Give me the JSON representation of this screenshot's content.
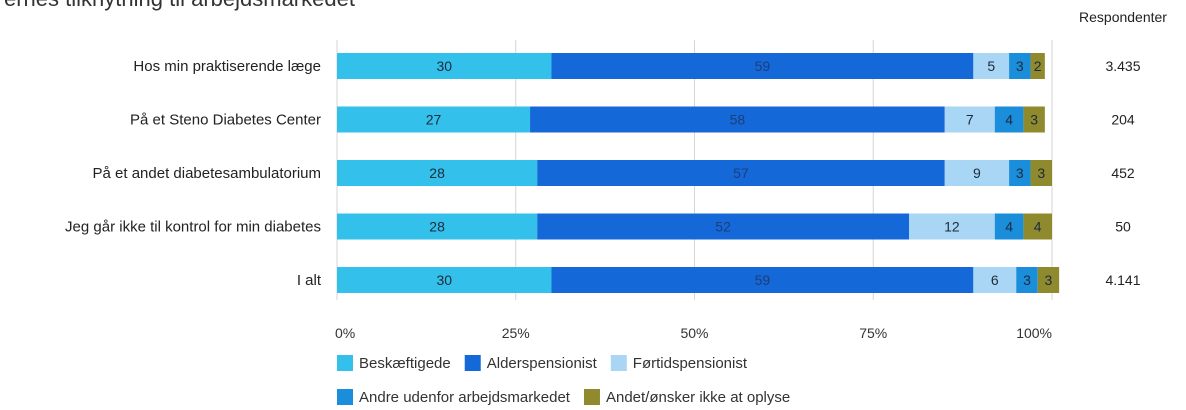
{
  "colors": {
    "Beskæftigede": "#33c0ea",
    "Alderspensionist": "#1468d8",
    "Førtidspensionist": "#a9d6f4",
    "Andre udenfor arbejdsmarkedet": "#1a8ddb",
    "Andet/ønsker ikke at oplyse": "#8f8a2e"
  },
  "chart_data": {
    "type": "bar",
    "orientation": "horizontal",
    "stacked": true,
    "title": "ernes tilknytning til arbejdsmarkedet",
    "respondents_header": "Respondenter",
    "categories": [
      "Hos min praktiserende læge",
      "På et Steno Diabetes Center",
      "På et andet diabetesambulatorium",
      "Jeg går ikke til kontrol for min diabetes",
      "I alt"
    ],
    "respondents": [
      "3.435",
      "204",
      "452",
      "50",
      "4.141"
    ],
    "series": [
      {
        "name": "Beskæftigede",
        "values": [
          30,
          27,
          28,
          28,
          30
        ]
      },
      {
        "name": "Alderspensionist",
        "values": [
          59,
          58,
          57,
          52,
          59
        ]
      },
      {
        "name": "Førtidspensionist",
        "values": [
          5,
          7,
          9,
          12,
          6
        ]
      },
      {
        "name": "Andre udenfor arbejdsmarkedet",
        "values": [
          3,
          4,
          3,
          4,
          3
        ]
      },
      {
        "name": "Andet/ønsker ikke at oplyse",
        "values": [
          2,
          3,
          3,
          4,
          3
        ]
      }
    ],
    "xticks": [
      "0%",
      "25%",
      "50%",
      "75%",
      "100%"
    ],
    "xlim": [
      0,
      100
    ],
    "grid": true,
    "legend_placement": "bottom"
  }
}
